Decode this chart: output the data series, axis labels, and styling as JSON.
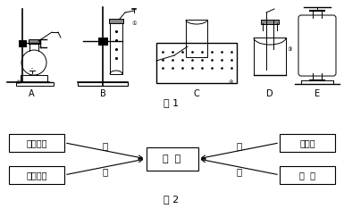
{
  "fig1_label": "图 1",
  "fig2_label": "图 2",
  "equipment_labels": [
    "A",
    "B",
    "C",
    "D",
    "E"
  ],
  "center_box_text": "氧  气",
  "left_boxes": [
    "过氧化氢",
    "高锰酸钾"
  ],
  "right_boxes": [
    "氯酸钾",
    "空  气"
  ],
  "arrow_labels_left": [
    "甲",
    "乙"
  ],
  "arrow_labels_right": [
    "丙",
    "丁"
  ],
  "bg_color": "#ffffff",
  "text_color": "#000000"
}
